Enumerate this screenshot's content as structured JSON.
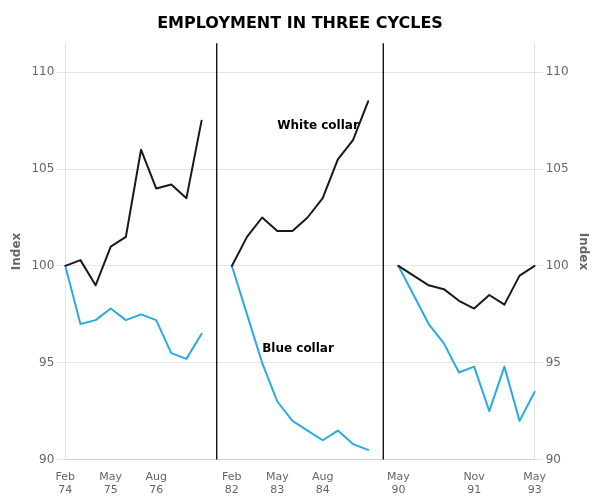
{
  "chart_data": {
    "type": "line",
    "title": "EMPLOYMENT IN THREE CYCLES",
    "ylabel": "Index",
    "y2label": "Index",
    "categories": [
      "Feb\n74",
      null,
      null,
      "May\n75",
      null,
      null,
      "Aug\n76",
      null,
      null,
      null,
      null,
      "Feb\n82",
      null,
      null,
      "May\n83",
      null,
      null,
      "Aug\n84",
      null,
      null,
      null,
      null,
      "May\n90",
      null,
      null,
      null,
      null,
      "Nov\n91",
      null,
      null,
      null,
      "May\n93"
    ],
    "series": [
      {
        "name": "White collar",
        "color": "#1a1a1a",
        "values": [
          100,
          100.3,
          99.0,
          101.0,
          101.5,
          106.0,
          104.0,
          104.2,
          103.5,
          107.5,
          null,
          100,
          101.5,
          102.5,
          101.8,
          101.8,
          102.5,
          103.5,
          105.5,
          106.5,
          108.5,
          null,
          100,
          99.5,
          99.0,
          98.8,
          98.2,
          97.8,
          98.5,
          98.0,
          99.5,
          100.0
        ]
      },
      {
        "name": "Blue collar",
        "color": "#29abe2",
        "values": [
          100,
          97.0,
          97.2,
          97.8,
          97.2,
          97.5,
          97.2,
          95.5,
          95.2,
          96.5,
          null,
          100,
          97.5,
          95.0,
          93.0,
          92.0,
          91.5,
          91.0,
          91.5,
          90.8,
          90.5,
          null,
          100,
          98.5,
          97.0,
          96.0,
          94.5,
          94.8,
          92.5,
          94.8,
          92.0,
          93.5
        ]
      }
    ],
    "ylim": [
      90,
      111.5
    ],
    "yticks": [
      90,
      95,
      100,
      105,
      110
    ],
    "y2lim": [
      90,
      111.5
    ],
    "y2ticks": [
      90,
      95,
      100,
      105,
      110
    ],
    "grid": true
  }
}
